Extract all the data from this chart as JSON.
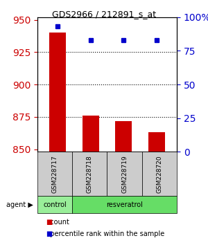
{
  "title": "GDS2966 / 212891_s_at",
  "samples": [
    "GSM228717",
    "GSM228718",
    "GSM228719",
    "GSM228720"
  ],
  "count_values": [
    940,
    876,
    872,
    863
  ],
  "percentile_values": [
    93.1,
    82.9,
    82.9,
    82.9
  ],
  "ylim_left": [
    848,
    952
  ],
  "ylim_right": [
    0,
    100
  ],
  "yticks_left": [
    850,
    875,
    900,
    925,
    950
  ],
  "yticks_right": [
    0,
    25,
    50,
    75,
    100
  ],
  "bar_color": "#cc0000",
  "dot_color": "#0000cc",
  "bar_width": 0.5,
  "groups": [
    {
      "label": "control",
      "samples": [
        "GSM228717"
      ],
      "color": "#99ee99"
    },
    {
      "label": "resveratrol",
      "samples": [
        "GSM228718",
        "GSM228719",
        "GSM228720"
      ],
      "color": "#66dd66"
    }
  ],
  "group_label_prefix": "agent",
  "background_color": "#ffffff",
  "plot_bg_color": "#ffffff",
  "grid_color": "#000000",
  "label_color_left": "#cc0000",
  "label_color_right": "#0000cc",
  "legend_count_label": "count",
  "legend_pct_label": "percentile rank within the sample",
  "x_tick_label_color": "#000000",
  "base_value": 848
}
